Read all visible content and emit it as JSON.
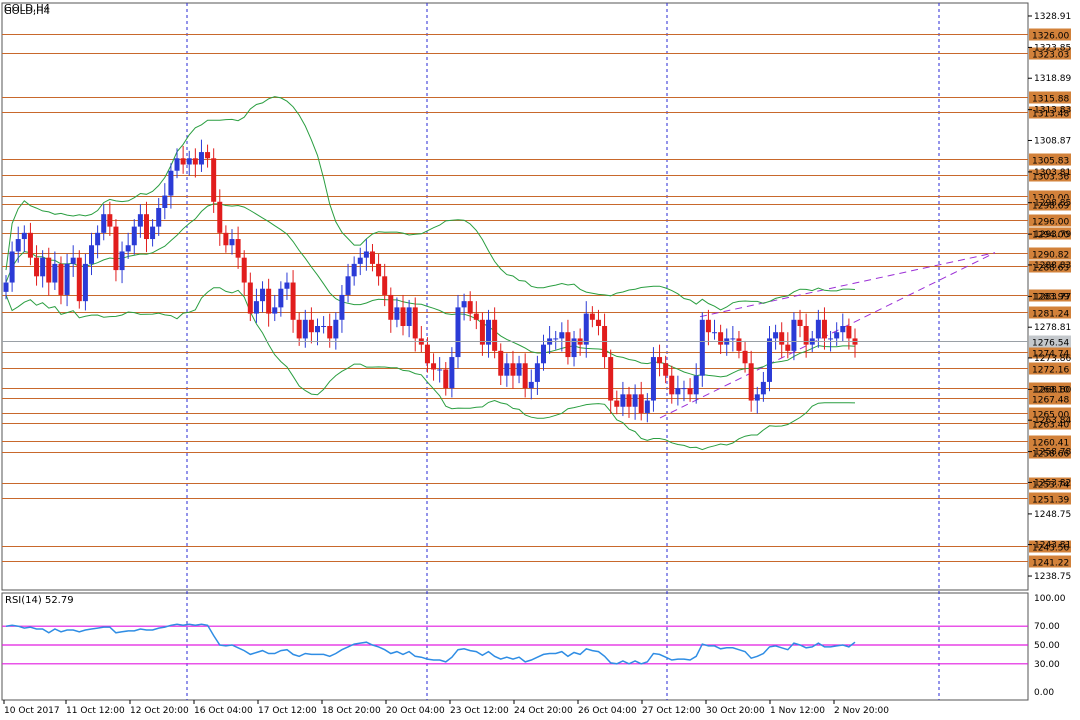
{
  "app": {
    "symbol_title": "GOLD,H4"
  },
  "colors": {
    "bull": "#2b3bd6",
    "bear": "#e11d1d",
    "band": "#2a9e40",
    "level": "#c8682c",
    "channel": "#9b2fd6",
    "rsi_line": "#2f8de4",
    "rsi_level": "#e21ce0",
    "grid_sep": "#2a2ad6",
    "zigzag": "#d62020",
    "badge_fill": "#d2813a"
  },
  "chart_data": [
    {
      "type": "candlestick",
      "title": "GOLD,H4",
      "ylim": [
        1236.5,
        1331.0
      ],
      "y_ticks": [
        "1328.91",
        "1323.85",
        "1318.89",
        "1313.83",
        "1308.87",
        "1303.81",
        "1298.85",
        "1293.79",
        "1288.83",
        "1283.77",
        "1278.81",
        "1273.86",
        "1268.80",
        "1263.84",
        "1258.78",
        "1253.82",
        "1248.75",
        "1243.81",
        "1238.75"
      ],
      "levels": [
        1326.0,
        1323.03,
        1315.88,
        1313.48,
        1305.83,
        1303.36,
        1300.0,
        1298.69,
        1296.0,
        1294.0,
        1290.82,
        1288.63,
        1283.99,
        1281.24,
        1274.74,
        1272.16,
        1269.1,
        1267.48,
        1265.0,
        1263.4,
        1260.41,
        1258.66,
        1253.74,
        1251.39,
        1243.56,
        1241.22
      ],
      "level_labels": [
        "1326.00",
        "1323.03",
        "1315.88",
        "1313.48",
        "1305.83",
        "1303.36",
        "1300.00",
        "1298.69",
        "1296.00",
        "1294.00",
        "1290.82",
        "1288.63",
        "1283.99",
        "1281.24",
        "1274.74",
        "1272.16",
        "1269.10",
        "1267.48",
        "1265.00",
        "1263.40",
        "1260.41",
        "1258.66",
        "1253.74",
        "1251.39",
        "1243.56",
        "1241.22"
      ],
      "current_price_label": "1276.54",
      "current_price": 1276.54,
      "x_labels": [
        "10 Oct 2017",
        "11 Oct 12:00",
        "12 Oct 20:00",
        "16 Oct 04:00",
        "17 Oct 12:00",
        "18 Oct 20:00",
        "20 Oct 04:00",
        "23 Oct 12:00",
        "24 Oct 20:00",
        "26 Oct 04:00",
        "27 Oct 12:00",
        "30 Oct 20:00",
        "1 Nov 12:00",
        "2 Nov 20:00"
      ],
      "closes": [
        1286,
        1291,
        1293,
        1294,
        1290,
        1287,
        1290,
        1286,
        1289,
        1284,
        1289,
        1290,
        1283,
        1289,
        1292,
        1294,
        1297,
        1295,
        1288,
        1291,
        1292,
        1295,
        1297,
        1293,
        1295,
        1298,
        1300,
        1304,
        1306,
        1305,
        1306,
        1305,
        1307,
        1306,
        1299,
        1294,
        1292,
        1293,
        1290,
        1286,
        1281,
        1283,
        1285,
        1281,
        1282,
        1285,
        1286,
        1280,
        1277,
        1280,
        1278,
        1279,
        1279,
        1277,
        1280,
        1284,
        1287,
        1289,
        1290,
        1291,
        1289,
        1287,
        1284,
        1280,
        1282,
        1279,
        1282,
        1277,
        1276,
        1273,
        1272,
        1272,
        1269,
        1274,
        1282,
        1283,
        1281,
        1280,
        1276,
        1280,
        1275,
        1271,
        1273,
        1271,
        1273,
        1269,
        1270,
        1273,
        1276,
        1277,
        1277,
        1278,
        1274,
        1277,
        1276,
        1281,
        1280,
        1279,
        1274,
        1267,
        1266,
        1268,
        1266,
        1268,
        1265,
        1267,
        1274,
        1273,
        1271,
        1268,
        1269,
        1269,
        1268,
        1271,
        1280,
        1278,
        1278,
        1276,
        1277,
        1277,
        1275,
        1273,
        1267,
        1268,
        1270,
        1277,
        1278,
        1276,
        1275,
        1280,
        1279,
        1276,
        1277,
        1280,
        1277,
        1277,
        1278,
        1279,
        1277,
        1276
      ]
    },
    {
      "type": "line",
      "title": "RSI(14) 52.79",
      "ylim": [
        0,
        100
      ],
      "y_ticks": [
        "100.00",
        "70.00",
        "50.00",
        "30.00",
        "0.00"
      ],
      "levels": [
        70,
        50,
        30
      ],
      "series": [
        {
          "name": "RSI(14)",
          "values": [
            70,
            71,
            70,
            68,
            69,
            67,
            67,
            63,
            67,
            64,
            66,
            66,
            64,
            66,
            67,
            68,
            69,
            69,
            63,
            64,
            65,
            65,
            67,
            66,
            66,
            68,
            69,
            71,
            72,
            71,
            72,
            71,
            72,
            71,
            60,
            50,
            49,
            50,
            47,
            44,
            40,
            42,
            44,
            41,
            41,
            44,
            45,
            40,
            38,
            41,
            40,
            40,
            40,
            38,
            41,
            45,
            48,
            51,
            52,
            53,
            50,
            48,
            45,
            41,
            43,
            40,
            43,
            38,
            37,
            35,
            34,
            34,
            32,
            37,
            45,
            46,
            44,
            43,
            39,
            43,
            38,
            35,
            37,
            35,
            37,
            32,
            34,
            37,
            40,
            41,
            41,
            43,
            38,
            42,
            40,
            46,
            44,
            43,
            38,
            31,
            30,
            33,
            30,
            33,
            30,
            32,
            41,
            40,
            37,
            34,
            35,
            35,
            34,
            38,
            51,
            49,
            49,
            46,
            47,
            47,
            45,
            43,
            36,
            38,
            41,
            48,
            49,
            47,
            45,
            52,
            50,
            47,
            48,
            52,
            48,
            48,
            49,
            50,
            48,
            53
          ]
        }
      ]
    }
  ]
}
